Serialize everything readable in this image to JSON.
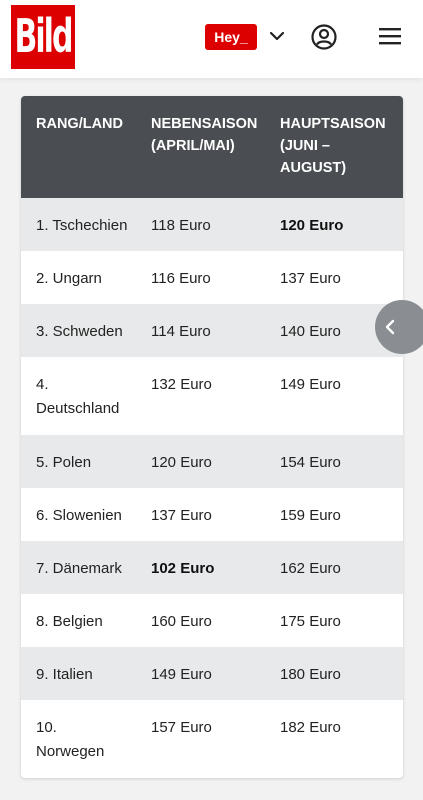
{
  "header": {
    "logo_text": "Bild",
    "hey_label": "Hey_",
    "icons": {
      "chevron": "chevron-down-icon",
      "user": "user-icon",
      "menu": "menu-icon"
    },
    "brand_color": "#dd0000"
  },
  "table": {
    "columns": [
      "Rang/Land",
      "Nebensaison (April/Mai)",
      "Hauptsaison (Juni – August)"
    ],
    "rows": [
      {
        "land": "1. Tschechien",
        "neben": "118 Euro",
        "haupt": "120 Euro",
        "bold": "haupt"
      },
      {
        "land": "2. Ungarn",
        "neben": "116 Euro",
        "haupt": "137 Euro",
        "bold": ""
      },
      {
        "land": "3. Schweden",
        "neben": "114 Euro",
        "haupt": "140 Euro",
        "bold": ""
      },
      {
        "land": "4. Deutschland",
        "neben": "132 Euro",
        "haupt": "149 Euro",
        "bold": ""
      },
      {
        "land": "5. Polen",
        "neben": "120 Euro",
        "haupt": "154 Euro",
        "bold": ""
      },
      {
        "land": "6. Slowenien",
        "neben": "137 Euro",
        "haupt": "159 Euro",
        "bold": ""
      },
      {
        "land": "7. Dänemark",
        "neben": "102 Euro",
        "haupt": "162 Euro",
        "bold": "neben"
      },
      {
        "land": "8. Belgien",
        "neben": "160 Euro",
        "haupt": "175 Euro",
        "bold": ""
      },
      {
        "land": "9. Italien",
        "neben": "149 Euro",
        "haupt": "180 Euro",
        "bold": ""
      },
      {
        "land": "10. Norwegen",
        "neben": "157 Euro",
        "haupt": "182 Euro",
        "bold": ""
      }
    ],
    "header_bg": "#4a4d51",
    "alt_row_bg": "#e8e9ea"
  },
  "scroll_button": {
    "icon": "chevron-left-icon"
  }
}
